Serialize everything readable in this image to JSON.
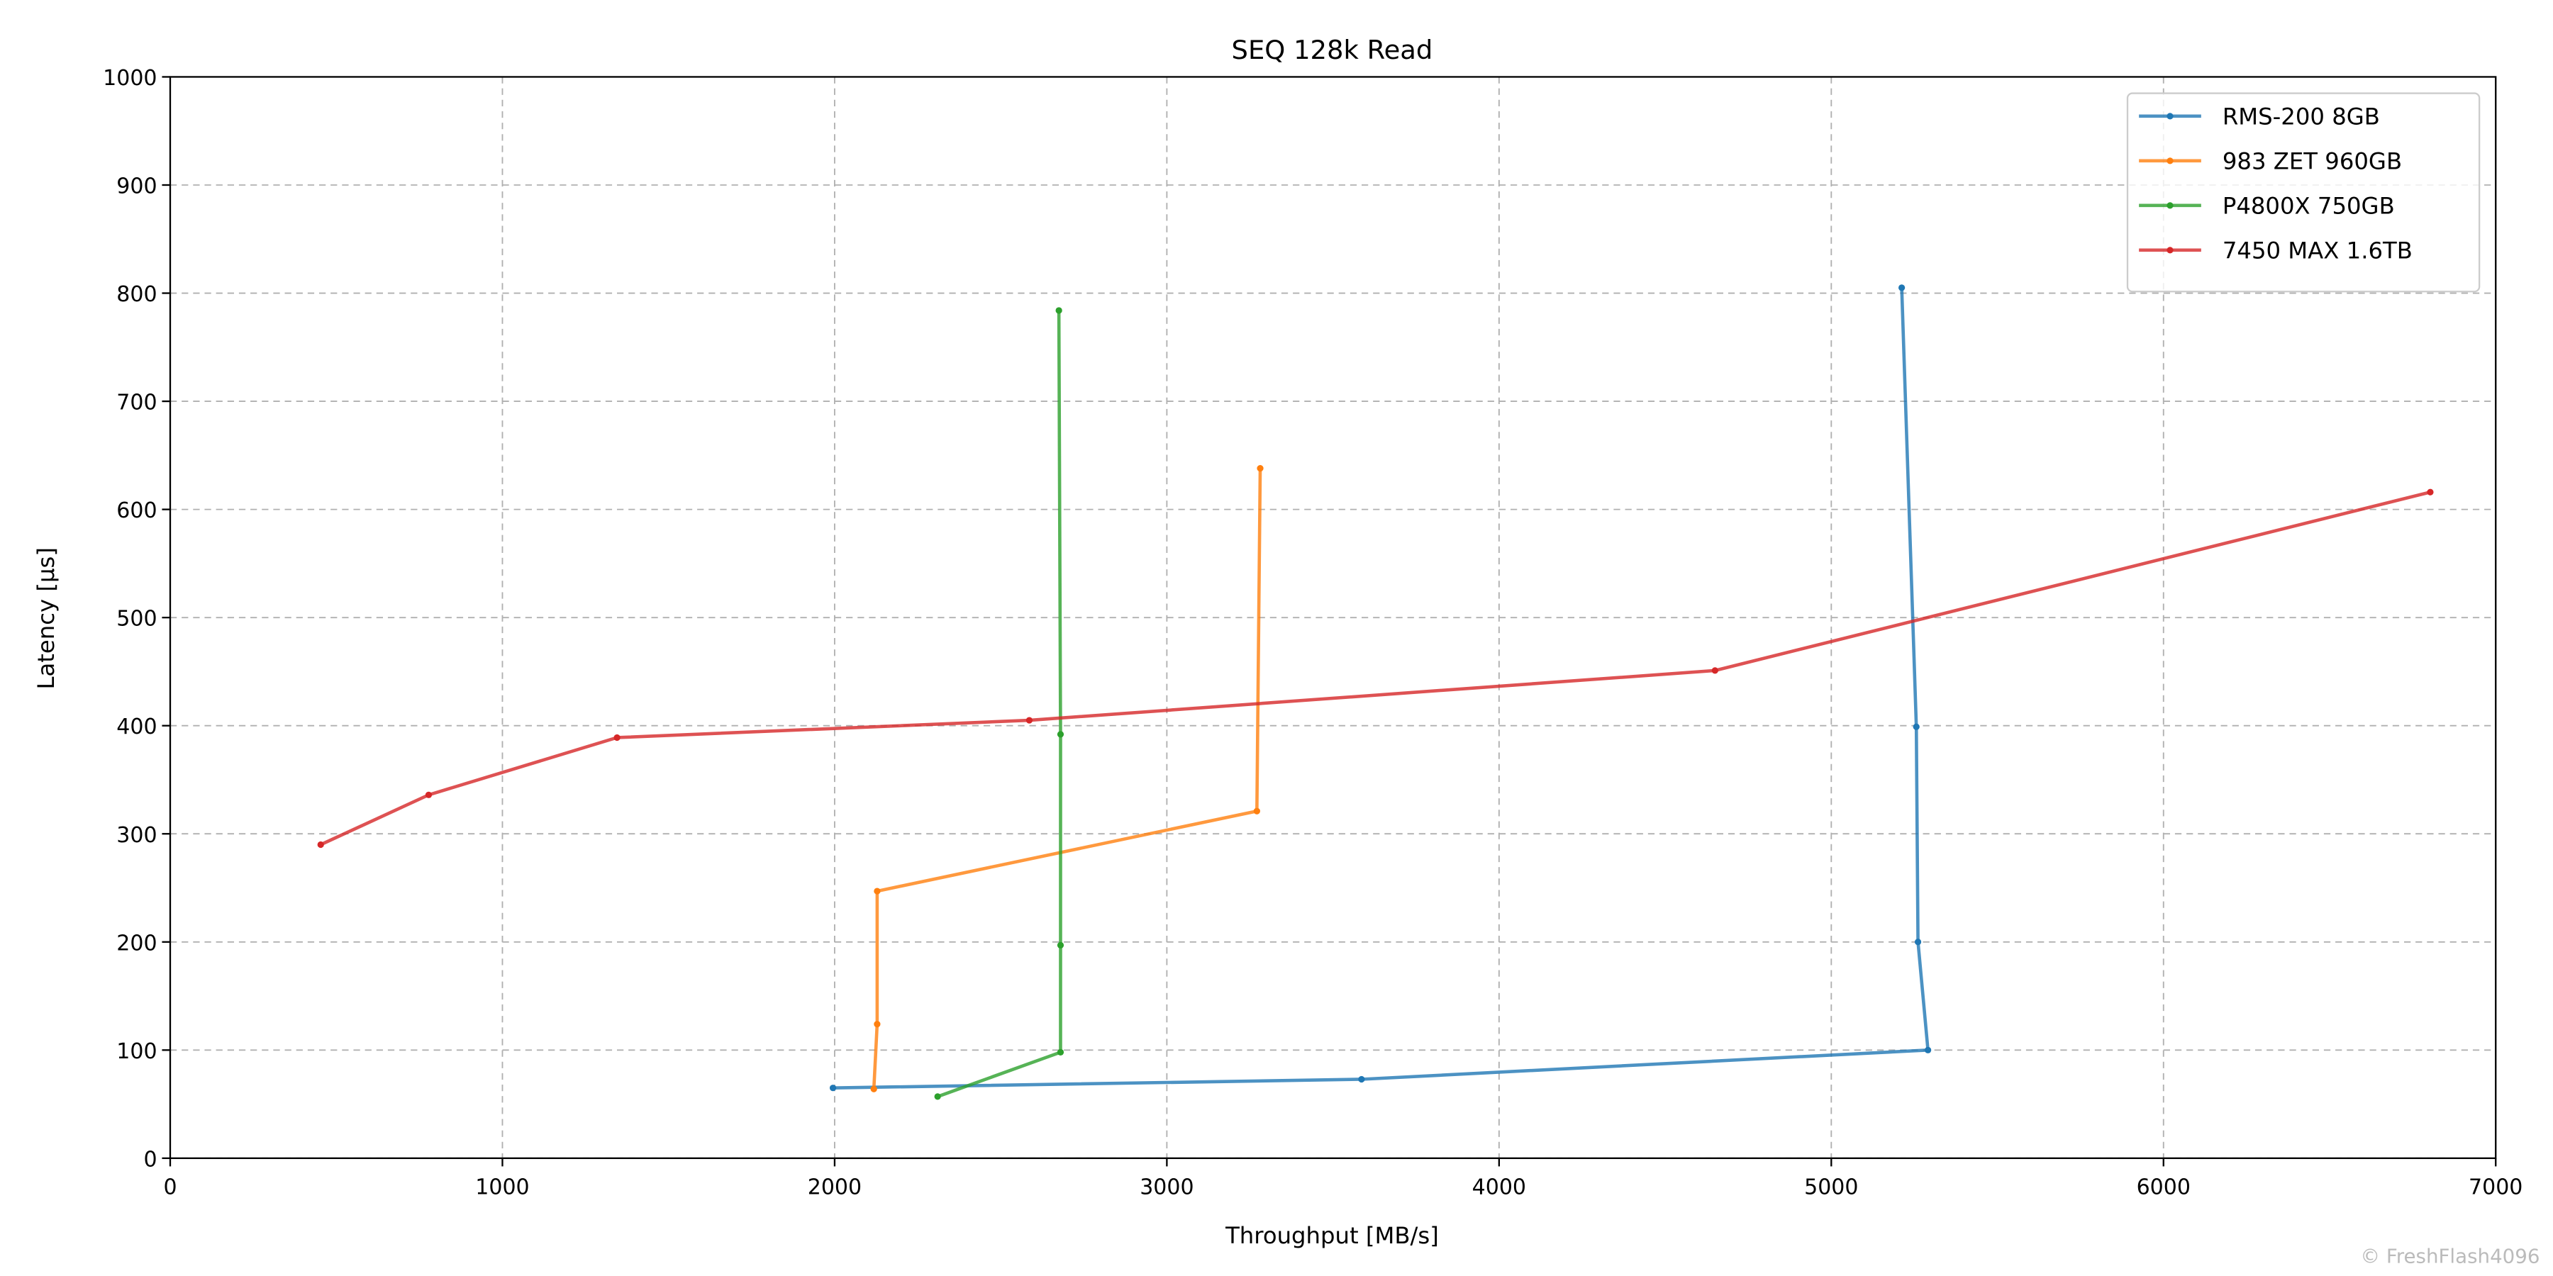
{
  "chart_data": {
    "type": "line",
    "title": "SEQ 128k Read",
    "x_label": "Throughput [MB/s]",
    "y_label": "Latency [µs]",
    "xlim": [
      0,
      7000
    ],
    "xticks": [
      0,
      1000,
      2000,
      3000,
      4000,
      5000,
      6000,
      7000
    ],
    "ylim": [
      0,
      1000
    ],
    "yticks": [
      0,
      100,
      200,
      300,
      400,
      500,
      600,
      700,
      800,
      900,
      1000
    ],
    "grid": true,
    "legend": "upper right",
    "series": [
      {
        "name": "RMS-200 8GB",
        "color": "#1f77b4",
        "x": [
          1995,
          3586,
          5291,
          5261,
          5256,
          5212
        ],
        "values": [
          65,
          73,
          100,
          200,
          399,
          805
        ]
      },
      {
        "name": "983 ZET 960GB",
        "color": "#ff7f0e",
        "x": [
          2118,
          2128,
          2128,
          3271,
          3281
        ],
        "values": [
          64,
          124,
          247,
          321,
          638
        ]
      },
      {
        "name": "P4800X 750GB",
        "color": "#2ca02c",
        "x": [
          2310,
          2680,
          2680,
          2680,
          2675
        ],
        "values": [
          57,
          98,
          197,
          392,
          784
        ]
      },
      {
        "name": "7450 MAX 1.6TB",
        "color": "#d62728",
        "x": [
          453,
          778,
          1345,
          2586,
          4650,
          6803
        ],
        "values": [
          290,
          336,
          389,
          405,
          451,
          616
        ]
      }
    ],
    "watermark": "© FreshFlash4096"
  }
}
